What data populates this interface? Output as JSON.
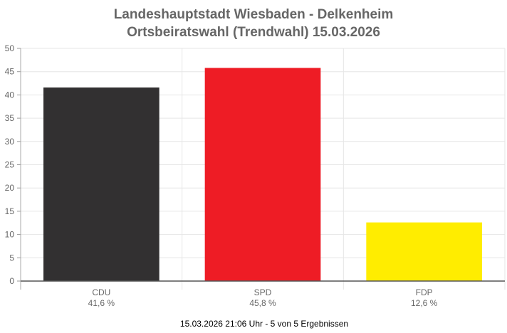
{
  "chart_data": {
    "type": "bar",
    "title": "Landeshauptstadt Wiesbaden - Delkenheim",
    "subtitle": "Ortsbeiratswahl (Trendwahl) 15.03.2026",
    "categories": [
      "CDU",
      "SPD",
      "FDP"
    ],
    "values": [
      41.6,
      45.8,
      12.6
    ],
    "value_labels": [
      "41,6 %",
      "45,8 %",
      "12,6 %"
    ],
    "colors": [
      "#323031",
      "#ee1c25",
      "#ffed00"
    ],
    "ylim": [
      0,
      50
    ],
    "yticks": [
      0,
      5,
      10,
      15,
      20,
      25,
      30,
      35,
      40,
      45,
      50
    ],
    "grid": true,
    "xlabel": "",
    "ylabel": ""
  },
  "footer": "15.03.2026 21:06 Uhr - 5 von 5 Ergebnissen"
}
